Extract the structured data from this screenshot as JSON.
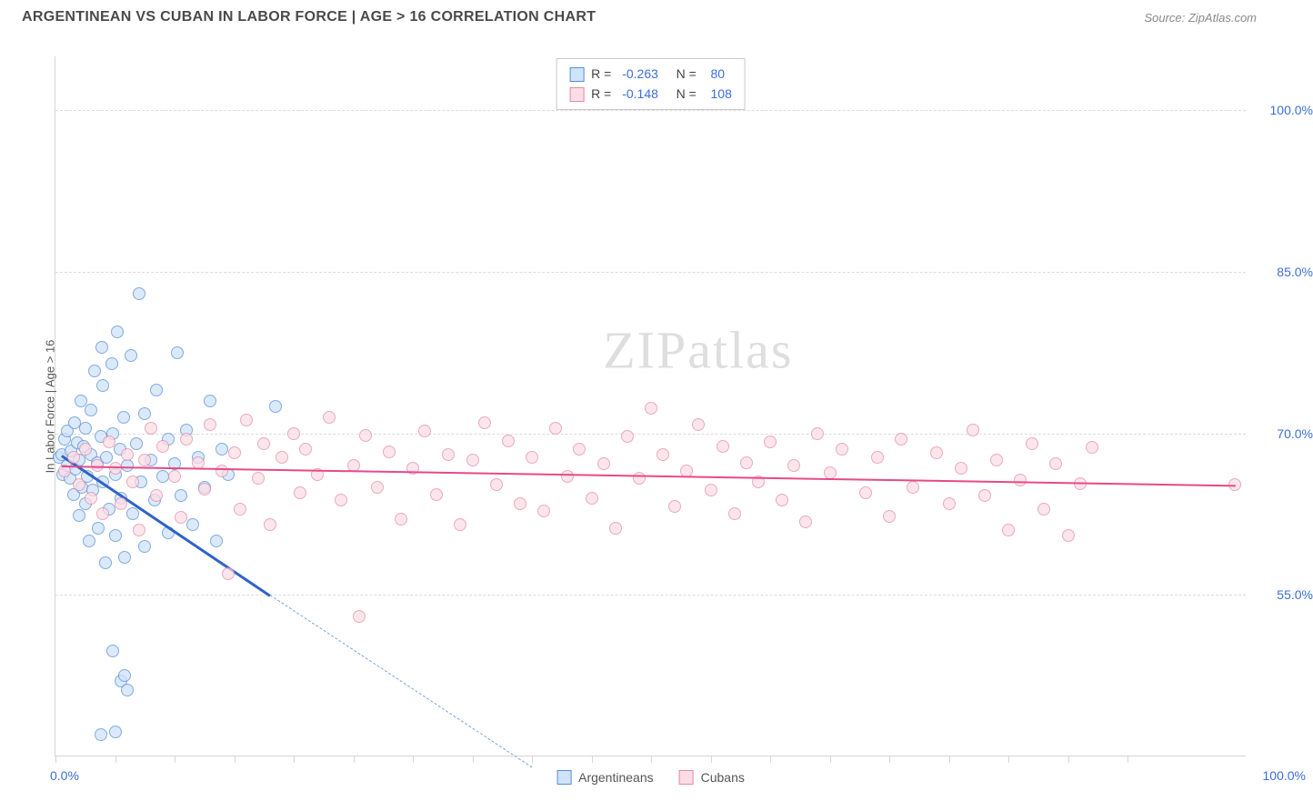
{
  "header": {
    "title": "ARGENTINEAN VS CUBAN IN LABOR FORCE | AGE > 16 CORRELATION CHART",
    "source": "Source: ZipAtlas.com"
  },
  "watermark": {
    "zip": "ZIP",
    "rest": "atlas"
  },
  "chart": {
    "type": "scatter",
    "background_color": "#ffffff",
    "grid_color": "#dcdcdc",
    "axis_color": "#d6d6d6",
    "ylabel": "In Labor Force | Age > 16",
    "ylabel_fontsize": 13,
    "xlim": [
      0,
      100
    ],
    "ylim": [
      40,
      105
    ],
    "x_axis_labels": {
      "min": "0.0%",
      "max": "100.0%"
    },
    "x_ticks": [
      0,
      5,
      10,
      15,
      20,
      25,
      30,
      35,
      40,
      45,
      50,
      55,
      60,
      65,
      70,
      75,
      80,
      85,
      90
    ],
    "y_gridlines": [
      {
        "value": 55.0,
        "label": "55.0%"
      },
      {
        "value": 70.0,
        "label": "70.0%"
      },
      {
        "value": 85.0,
        "label": "85.0%"
      },
      {
        "value": 100.0,
        "label": "100.0%"
      }
    ],
    "axis_label_color": "#3b6fd6",
    "series": [
      {
        "name": "Argentineans",
        "marker_fill": "#cfe3f9",
        "marker_stroke": "#5a8fd6",
        "marker_size": 14,
        "marker_opacity": 0.75,
        "R": "-0.263",
        "N": "80",
        "trend": {
          "color": "#2f63c9",
          "x1": 0.5,
          "y1": 68,
          "x2": 18,
          "y2": 55,
          "width": 2.5
        },
        "trend_extrapolate": {
          "color": "#7ba3e0",
          "x1": 18,
          "y1": 55,
          "x2": 40,
          "y2": 39
        },
        "points": [
          {
            "x": 0.3,
            "y": 67.8
          },
          {
            "x": 0.5,
            "y": 68.0
          },
          {
            "x": 0.6,
            "y": 66.2
          },
          {
            "x": 0.8,
            "y": 69.5
          },
          {
            "x": 1.0,
            "y": 67.0
          },
          {
            "x": 1.0,
            "y": 70.2
          },
          {
            "x": 1.2,
            "y": 65.8
          },
          {
            "x": 1.3,
            "y": 68.4
          },
          {
            "x": 1.5,
            "y": 64.3
          },
          {
            "x": 1.6,
            "y": 71.0
          },
          {
            "x": 1.7,
            "y": 66.7
          },
          {
            "x": 1.8,
            "y": 69.1
          },
          {
            "x": 2.0,
            "y": 62.4
          },
          {
            "x": 2.0,
            "y": 67.5
          },
          {
            "x": 2.1,
            "y": 73.0
          },
          {
            "x": 2.2,
            "y": 65.0
          },
          {
            "x": 2.4,
            "y": 68.8
          },
          {
            "x": 2.5,
            "y": 63.5
          },
          {
            "x": 2.5,
            "y": 70.5
          },
          {
            "x": 2.7,
            "y": 66.0
          },
          {
            "x": 2.8,
            "y": 60.0
          },
          {
            "x": 3.0,
            "y": 68.0
          },
          {
            "x": 3.0,
            "y": 72.2
          },
          {
            "x": 3.1,
            "y": 64.7
          },
          {
            "x": 3.3,
            "y": 75.8
          },
          {
            "x": 3.5,
            "y": 67.3
          },
          {
            "x": 3.6,
            "y": 61.2
          },
          {
            "x": 3.8,
            "y": 69.7
          },
          {
            "x": 3.9,
            "y": 78.0
          },
          {
            "x": 4.0,
            "y": 65.5
          },
          {
            "x": 4.0,
            "y": 74.4
          },
          {
            "x": 4.2,
            "y": 58.0
          },
          {
            "x": 4.3,
            "y": 67.8
          },
          {
            "x": 4.5,
            "y": 63.0
          },
          {
            "x": 4.7,
            "y": 76.5
          },
          {
            "x": 4.8,
            "y": 70.0
          },
          {
            "x": 5.0,
            "y": 66.2
          },
          {
            "x": 5.0,
            "y": 60.5
          },
          {
            "x": 5.2,
            "y": 79.4
          },
          {
            "x": 5.4,
            "y": 68.5
          },
          {
            "x": 5.5,
            "y": 64.0
          },
          {
            "x": 5.7,
            "y": 71.5
          },
          {
            "x": 5.8,
            "y": 58.5
          },
          {
            "x": 6.0,
            "y": 67.0
          },
          {
            "x": 6.3,
            "y": 77.2
          },
          {
            "x": 6.5,
            "y": 62.5
          },
          {
            "x": 6.8,
            "y": 69.0
          },
          {
            "x": 7.0,
            "y": 83.0
          },
          {
            "x": 7.2,
            "y": 65.5
          },
          {
            "x": 7.5,
            "y": 59.5
          },
          {
            "x": 7.5,
            "y": 71.8
          },
          {
            "x": 8.0,
            "y": 67.5
          },
          {
            "x": 8.3,
            "y": 63.8
          },
          {
            "x": 8.5,
            "y": 74.0
          },
          {
            "x": 9.0,
            "y": 66.0
          },
          {
            "x": 9.5,
            "y": 60.8
          },
          {
            "x": 9.5,
            "y": 69.5
          },
          {
            "x": 10.0,
            "y": 67.2
          },
          {
            "x": 10.2,
            "y": 77.5
          },
          {
            "x": 10.5,
            "y": 64.2
          },
          {
            "x": 11.0,
            "y": 70.3
          },
          {
            "x": 11.5,
            "y": 61.5
          },
          {
            "x": 12.0,
            "y": 67.8
          },
          {
            "x": 12.5,
            "y": 65.0
          },
          {
            "x": 13.0,
            "y": 73.0
          },
          {
            "x": 13.5,
            "y": 60.0
          },
          {
            "x": 14.0,
            "y": 68.5
          },
          {
            "x": 14.5,
            "y": 66.2
          },
          {
            "x": 18.5,
            "y": 72.5
          },
          {
            "x": 4.8,
            "y": 49.8
          },
          {
            "x": 5.5,
            "y": 47.0
          },
          {
            "x": 5.8,
            "y": 47.5
          },
          {
            "x": 6.0,
            "y": 46.2
          },
          {
            "x": 3.8,
            "y": 42.0
          },
          {
            "x": 5.0,
            "y": 42.3
          }
        ]
      },
      {
        "name": "Cubans",
        "marker_fill": "#fcdde6",
        "marker_stroke": "#e688a5",
        "marker_size": 14,
        "marker_opacity": 0.72,
        "R": "-0.148",
        "N": "108",
        "trend": {
          "color": "#e64a87",
          "x1": 0.5,
          "y1": 67.0,
          "x2": 99,
          "y2": 65.2,
          "width": 2
        },
        "points": [
          {
            "x": 0.8,
            "y": 66.5
          },
          {
            "x": 1.5,
            "y": 67.8
          },
          {
            "x": 2.0,
            "y": 65.2
          },
          {
            "x": 2.5,
            "y": 68.5
          },
          {
            "x": 3.0,
            "y": 64.0
          },
          {
            "x": 3.5,
            "y": 67.0
          },
          {
            "x": 4.0,
            "y": 62.5
          },
          {
            "x": 4.5,
            "y": 69.2
          },
          {
            "x": 5.0,
            "y": 66.8
          },
          {
            "x": 5.5,
            "y": 63.5
          },
          {
            "x": 6.0,
            "y": 68.0
          },
          {
            "x": 6.5,
            "y": 65.5
          },
          {
            "x": 7.0,
            "y": 61.0
          },
          {
            "x": 7.5,
            "y": 67.5
          },
          {
            "x": 8.0,
            "y": 70.5
          },
          {
            "x": 8.5,
            "y": 64.2
          },
          {
            "x": 9.0,
            "y": 68.8
          },
          {
            "x": 10.0,
            "y": 66.0
          },
          {
            "x": 10.5,
            "y": 62.2
          },
          {
            "x": 11.0,
            "y": 69.5
          },
          {
            "x": 12.0,
            "y": 67.3
          },
          {
            "x": 12.5,
            "y": 64.8
          },
          {
            "x": 13.0,
            "y": 70.8
          },
          {
            "x": 14.0,
            "y": 66.5
          },
          {
            "x": 14.5,
            "y": 57.0
          },
          {
            "x": 15.0,
            "y": 68.2
          },
          {
            "x": 15.5,
            "y": 63.0
          },
          {
            "x": 16.0,
            "y": 71.2
          },
          {
            "x": 17.0,
            "y": 65.8
          },
          {
            "x": 17.5,
            "y": 69.0
          },
          {
            "x": 18.0,
            "y": 61.5
          },
          {
            "x": 19.0,
            "y": 67.8
          },
          {
            "x": 20.0,
            "y": 70.0
          },
          {
            "x": 20.5,
            "y": 64.5
          },
          {
            "x": 21.0,
            "y": 68.5
          },
          {
            "x": 22.0,
            "y": 66.2
          },
          {
            "x": 23.0,
            "y": 71.5
          },
          {
            "x": 24.0,
            "y": 63.8
          },
          {
            "x": 25.0,
            "y": 67.0
          },
          {
            "x": 25.5,
            "y": 53.0
          },
          {
            "x": 26.0,
            "y": 69.8
          },
          {
            "x": 27.0,
            "y": 65.0
          },
          {
            "x": 28.0,
            "y": 68.3
          },
          {
            "x": 29.0,
            "y": 62.0
          },
          {
            "x": 30.0,
            "y": 66.8
          },
          {
            "x": 31.0,
            "y": 70.2
          },
          {
            "x": 32.0,
            "y": 64.3
          },
          {
            "x": 33.0,
            "y": 68.0
          },
          {
            "x": 34.0,
            "y": 61.5
          },
          {
            "x": 35.0,
            "y": 67.5
          },
          {
            "x": 36.0,
            "y": 71.0
          },
          {
            "x": 37.0,
            "y": 65.2
          },
          {
            "x": 38.0,
            "y": 69.3
          },
          {
            "x": 39.0,
            "y": 63.5
          },
          {
            "x": 40.0,
            "y": 67.8
          },
          {
            "x": 41.0,
            "y": 62.8
          },
          {
            "x": 42.0,
            "y": 70.5
          },
          {
            "x": 43.0,
            "y": 66.0
          },
          {
            "x": 44.0,
            "y": 68.5
          },
          {
            "x": 45.0,
            "y": 64.0
          },
          {
            "x": 46.0,
            "y": 67.2
          },
          {
            "x": 47.0,
            "y": 61.2
          },
          {
            "x": 48.0,
            "y": 69.7
          },
          {
            "x": 49.0,
            "y": 65.8
          },
          {
            "x": 50.0,
            "y": 72.3
          },
          {
            "x": 51.0,
            "y": 68.0
          },
          {
            "x": 52.0,
            "y": 63.2
          },
          {
            "x": 53.0,
            "y": 66.5
          },
          {
            "x": 54.0,
            "y": 70.8
          },
          {
            "x": 55.0,
            "y": 64.7
          },
          {
            "x": 56.0,
            "y": 68.8
          },
          {
            "x": 57.0,
            "y": 62.5
          },
          {
            "x": 58.0,
            "y": 67.3
          },
          {
            "x": 59.0,
            "y": 65.5
          },
          {
            "x": 60.0,
            "y": 69.2
          },
          {
            "x": 61.0,
            "y": 63.8
          },
          {
            "x": 62.0,
            "y": 67.0
          },
          {
            "x": 63.0,
            "y": 61.8
          },
          {
            "x": 64.0,
            "y": 70.0
          },
          {
            "x": 65.0,
            "y": 66.3
          },
          {
            "x": 66.0,
            "y": 68.5
          },
          {
            "x": 68.0,
            "y": 64.5
          },
          {
            "x": 69.0,
            "y": 67.8
          },
          {
            "x": 70.0,
            "y": 62.3
          },
          {
            "x": 71.0,
            "y": 69.5
          },
          {
            "x": 72.0,
            "y": 65.0
          },
          {
            "x": 74.0,
            "y": 68.2
          },
          {
            "x": 75.0,
            "y": 63.5
          },
          {
            "x": 76.0,
            "y": 66.8
          },
          {
            "x": 77.0,
            "y": 70.3
          },
          {
            "x": 78.0,
            "y": 64.2
          },
          {
            "x": 79.0,
            "y": 67.5
          },
          {
            "x": 80.0,
            "y": 61.0
          },
          {
            "x": 81.0,
            "y": 65.7
          },
          {
            "x": 82.0,
            "y": 69.0
          },
          {
            "x": 83.0,
            "y": 63.0
          },
          {
            "x": 84.0,
            "y": 67.2
          },
          {
            "x": 85.0,
            "y": 60.5
          },
          {
            "x": 86.0,
            "y": 65.3
          },
          {
            "x": 87.0,
            "y": 68.7
          },
          {
            "x": 99.0,
            "y": 65.2
          }
        ]
      }
    ],
    "bottom_legend": [
      {
        "label": "Argentineans",
        "fill": "#cfe3f9",
        "stroke": "#5a8fd6"
      },
      {
        "label": "Cubans",
        "fill": "#fcdde6",
        "stroke": "#e688a5"
      }
    ],
    "stats_box": {
      "rows": [
        {
          "swatch_fill": "#cfe3f9",
          "swatch_stroke": "#5a8fd6",
          "R_label": "R =",
          "R_val": "-0.263",
          "N_label": "N =",
          "N_val": "80"
        },
        {
          "swatch_fill": "#fcdde6",
          "swatch_stroke": "#e688a5",
          "R_label": "R =",
          "R_val": "-0.148",
          "N_label": "N =",
          "N_val": "108"
        }
      ]
    }
  }
}
